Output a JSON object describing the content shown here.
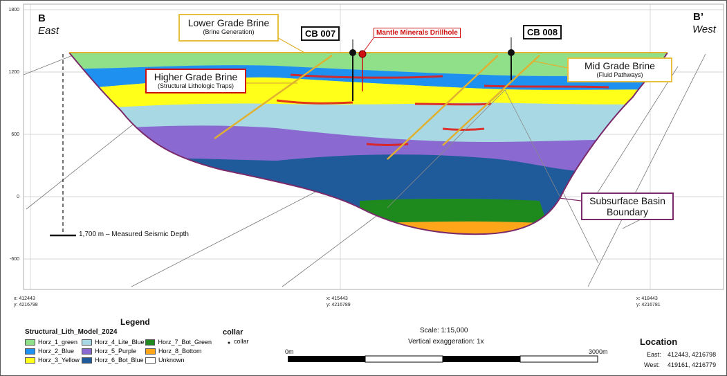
{
  "section": {
    "left_label": "B",
    "left_dir": "East",
    "right_label": "B’",
    "right_dir": "West"
  },
  "y_axis_ticks": [
    "1800",
    "1200",
    "600",
    "0",
    "-600"
  ],
  "x_axis_ticks": [
    {
      "x": "x: 412443",
      "y": "y: 4216798"
    },
    {
      "x": "x: 415443",
      "y": "y: 4216789"
    },
    {
      "x": "x: 418443",
      "y": "y: 4216781"
    }
  ],
  "callouts": {
    "lower_grade": {
      "main": "Lower Grade Brine",
      "sub": "(Brine Generation)"
    },
    "higher_grade": {
      "main": "Higher Grade Brine",
      "sub": "(Structural Lithologic Traps)"
    },
    "mid_grade": {
      "main": "Mid Grade Brine",
      "sub": "(Fluid Pathways)"
    },
    "basin": {
      "line1": "Subsurface Basin",
      "line2": "Boundary"
    }
  },
  "drillholes": {
    "cb007": "CB 007",
    "cb008": "CB 008",
    "mantle": "Mantle Minerals Drillhole"
  },
  "seismic_depth": "1,700 m – Measured Seismic Depth",
  "legend": {
    "title": "Legend",
    "model_title": "Structural_Lith_Model_2024",
    "items": [
      {
        "label": "Horz_1_green",
        "color": "#90e08a"
      },
      {
        "label": "Horz_2_Blue",
        "color": "#1e90f0"
      },
      {
        "label": "Horz_3_Yellow",
        "color": "#ffff1a"
      },
      {
        "label": "Horz_4_Lite_Blue",
        "color": "#a8d8e4"
      },
      {
        "label": "Horz_5_Purple",
        "color": "#8a6ad0"
      },
      {
        "label": "Horz_6_Bot_Blue",
        "color": "#1f5a9a"
      },
      {
        "label": "Horz_7_Bot_Green",
        "color": "#1e8a1e"
      },
      {
        "label": "Horz_8_Bottom",
        "color": "#ffa51a"
      },
      {
        "label": "Unknown",
        "color": "#ffffff"
      }
    ],
    "collar_title": "collar",
    "collar_item": "collar"
  },
  "scale": {
    "text": "Scale: 1:15,000",
    "exaggeration": "Vertical exaggeration: 1x",
    "start": "0m",
    "end": "3000m"
  },
  "location": {
    "title": "Location",
    "east_label": "East:",
    "east_value": "412443, 4216798",
    "west_label": "West:",
    "west_value": "419161, 4216779"
  }
}
